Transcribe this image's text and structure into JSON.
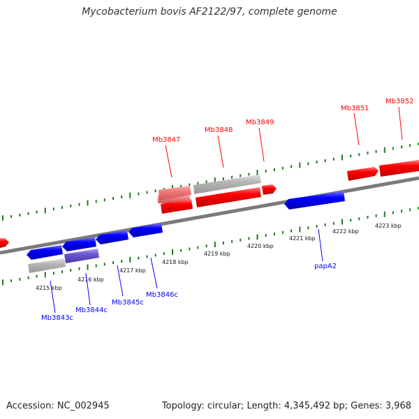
{
  "title": "Mycobacterium bovis AF2122/97, complete genome",
  "footer": {
    "accession": "Accession: NC_002945",
    "summary": "Topology: circular; Length: 4,345,492 bp; Genes: 3,968"
  },
  "colors": {
    "forward": "#ff0000",
    "reverse": "#0000ff",
    "grey": "#b4b4b4",
    "light_red": "#ee7777",
    "purple": "#6a55d0",
    "tick": "#1e7a1e",
    "backbone": "#7a7a7a"
  },
  "scale": {
    "unit": "kbp",
    "ticks_kbp": [
      4215,
      4216,
      4217,
      4218,
      4219,
      4220,
      4221,
      4222,
      4223
    ],
    "tick_labels": [
      "4215 kbp",
      "4216 kbp",
      "4217 kbp",
      "4218 kbp",
      "4219 kbp",
      "4220 kbp",
      "4221 kbp",
      "4222 kbp",
      "4223 kbp"
    ]
  },
  "gene_labels": {
    "forward": [
      "Mb3847",
      "Mb3848",
      "Mb3849",
      "Mb3851",
      "Mb3852"
    ],
    "reverse": [
      "Mb3843c",
      "Mb3844c",
      "Mb3845c",
      "Mb3846c",
      "papA2"
    ]
  }
}
